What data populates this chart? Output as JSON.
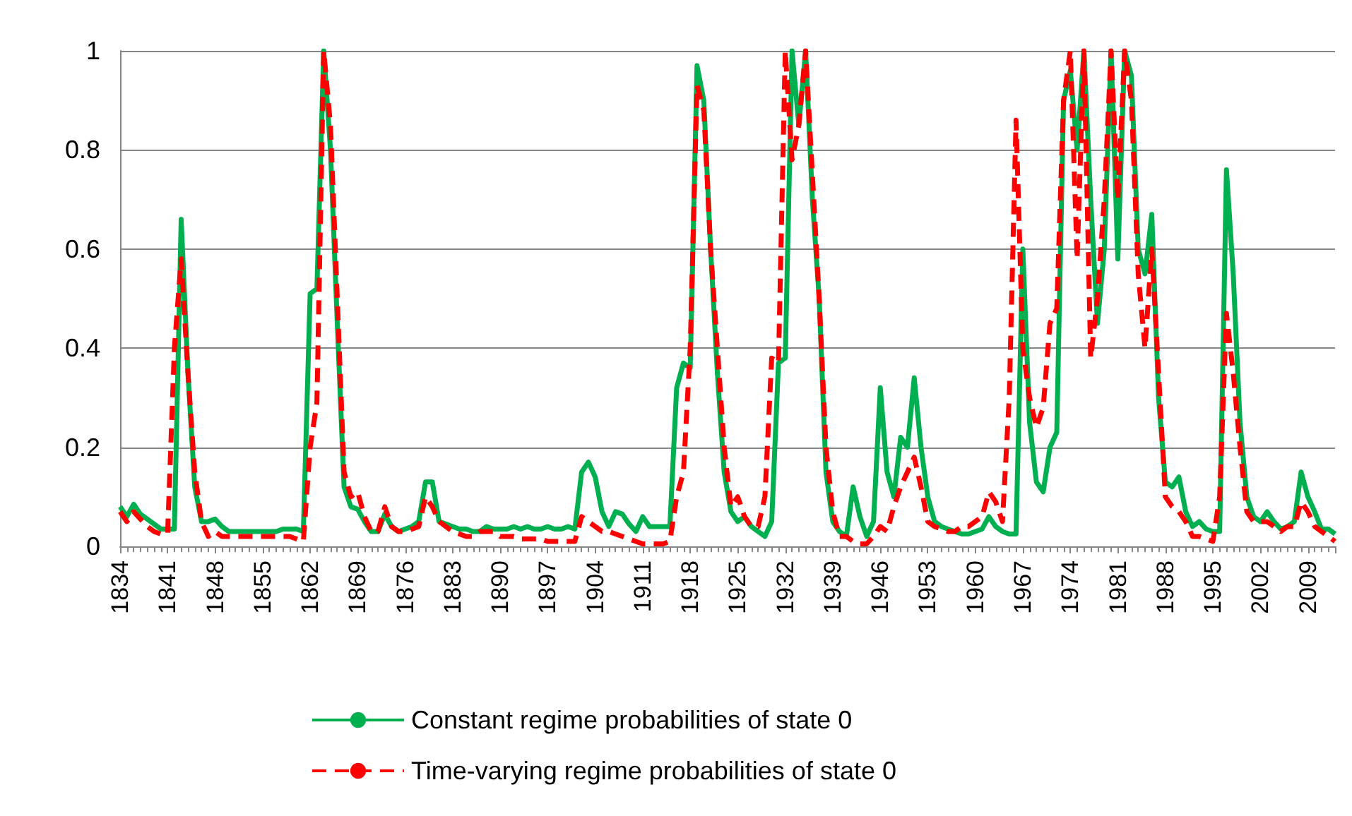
{
  "chart_data": {
    "type": "line",
    "x": [
      1834,
      1835,
      1836,
      1837,
      1838,
      1839,
      1840,
      1841,
      1842,
      1843,
      1844,
      1845,
      1846,
      1847,
      1848,
      1849,
      1850,
      1851,
      1852,
      1853,
      1854,
      1855,
      1856,
      1857,
      1858,
      1859,
      1860,
      1861,
      1862,
      1863,
      1864,
      1865,
      1866,
      1867,
      1868,
      1869,
      1870,
      1871,
      1872,
      1873,
      1874,
      1875,
      1876,
      1877,
      1878,
      1879,
      1880,
      1881,
      1882,
      1883,
      1884,
      1885,
      1886,
      1887,
      1888,
      1889,
      1890,
      1891,
      1892,
      1893,
      1894,
      1895,
      1896,
      1897,
      1898,
      1899,
      1900,
      1901,
      1902,
      1903,
      1904,
      1905,
      1906,
      1907,
      1908,
      1909,
      1910,
      1911,
      1912,
      1913,
      1914,
      1915,
      1916,
      1917,
      1918,
      1919,
      1920,
      1921,
      1922,
      1923,
      1924,
      1925,
      1926,
      1927,
      1928,
      1929,
      1930,
      1931,
      1932,
      1933,
      1934,
      1935,
      1936,
      1937,
      1938,
      1939,
      1940,
      1941,
      1942,
      1943,
      1944,
      1945,
      1946,
      1947,
      1948,
      1949,
      1950,
      1951,
      1952,
      1953,
      1954,
      1955,
      1956,
      1957,
      1958,
      1959,
      1960,
      1961,
      1962,
      1963,
      1964,
      1965,
      1966,
      1967,
      1968,
      1969,
      1970,
      1971,
      1972,
      1973,
      1974,
      1975,
      1976,
      1977,
      1978,
      1979,
      1980,
      1981,
      1982,
      1983,
      1984,
      1985,
      1986,
      1987,
      1988,
      1989,
      1990,
      1991,
      1992,
      1993,
      1994,
      1995,
      1996,
      1997,
      1998,
      1999,
      2000,
      2001,
      2002,
      2003,
      2004,
      2005,
      2006,
      2007,
      2008,
      2009,
      2010,
      2011,
      2012,
      2013
    ],
    "xlim": [
      1834,
      2013
    ],
    "xticks": [
      1834,
      1841,
      1848,
      1855,
      1862,
      1869,
      1876,
      1883,
      1890,
      1897,
      1904,
      1911,
      1918,
      1925,
      1932,
      1939,
      1946,
      1953,
      1960,
      1967,
      1974,
      1981,
      1988,
      1995,
      2002,
      2009
    ],
    "ylim": [
      0,
      1
    ],
    "yticks": [
      0,
      0.2,
      0.4,
      0.6,
      0.8,
      1
    ],
    "grid": "y",
    "legend": "bottom",
    "marker": "none",
    "series": [
      {
        "name": "Constant regime probabilities of state 0",
        "color": "#00b050",
        "line_style": "solid",
        "values": [
          0.08,
          0.06,
          0.085,
          0.065,
          0.055,
          0.045,
          0.035,
          0.035,
          0.035,
          0.66,
          0.35,
          0.12,
          0.05,
          0.05,
          0.055,
          0.04,
          0.03,
          0.03,
          0.03,
          0.03,
          0.03,
          0.03,
          0.03,
          0.03,
          0.035,
          0.035,
          0.035,
          0.03,
          0.51,
          0.52,
          1,
          0.8,
          0.45,
          0.12,
          0.08,
          0.075,
          0.05,
          0.03,
          0.03,
          0.065,
          0.04,
          0.03,
          0.035,
          0.04,
          0.05,
          0.13,
          0.13,
          0.05,
          0.045,
          0.04,
          0.035,
          0.035,
          0.03,
          0.03,
          0.04,
          0.035,
          0.035,
          0.035,
          0.04,
          0.035,
          0.04,
          0.035,
          0.035,
          0.04,
          0.035,
          0.035,
          0.04,
          0.035,
          0.15,
          0.17,
          0.14,
          0.07,
          0.04,
          0.07,
          0.065,
          0.045,
          0.03,
          0.06,
          0.04,
          0.04,
          0.04,
          0.04,
          0.32,
          0.37,
          0.36,
          0.97,
          0.9,
          0.6,
          0.35,
          0.15,
          0.07,
          0.05,
          0.06,
          0.04,
          0.03,
          0.02,
          0.05,
          0.37,
          0.38,
          1,
          0.85,
          1,
          0.7,
          0.5,
          0.15,
          0.05,
          0.03,
          0.02,
          0.12,
          0.06,
          0.02,
          0.05,
          0.32,
          0.15,
          0.1,
          0.22,
          0.2,
          0.34,
          0.2,
          0.1,
          0.05,
          0.04,
          0.035,
          0.03,
          0.025,
          0.025,
          0.03,
          0.035,
          0.06,
          0.04,
          0.03,
          0.025,
          0.025,
          0.6,
          0.25,
          0.13,
          0.11,
          0.2,
          0.23,
          0.9,
          0.96,
          0.8,
          1,
          0.7,
          0.45,
          0.6,
          1,
          0.58,
          1,
          0.95,
          0.6,
          0.55,
          0.67,
          0.3,
          0.13,
          0.12,
          0.14,
          0.07,
          0.04,
          0.05,
          0.035,
          0.03,
          0.03,
          0.76,
          0.55,
          0.25,
          0.1,
          0.06,
          0.05,
          0.07,
          0.05,
          0.035,
          0.04,
          0.05,
          0.15,
          0.1,
          0.07,
          0.035,
          0.035,
          0.025
        ]
      },
      {
        "name": "Time-varying regime probabilities of state 0",
        "color": "#ff0000",
        "line_style": "dashed",
        "values": [
          0.07,
          0.05,
          0.07,
          0.055,
          0.04,
          0.03,
          0.025,
          0.025,
          0.4,
          0.58,
          0.35,
          0.15,
          0.05,
          0.02,
          0.03,
          0.02,
          0.02,
          0.02,
          0.02,
          0.02,
          0.02,
          0.02,
          0.02,
          0.02,
          0.02,
          0.02,
          0.015,
          0.01,
          0.2,
          0.29,
          1,
          0.85,
          0.5,
          0.15,
          0.1,
          0.11,
          0.06,
          0.03,
          0.03,
          0.08,
          0.04,
          0.03,
          0.03,
          0.035,
          0.04,
          0.1,
          0.08,
          0.05,
          0.04,
          0.03,
          0.025,
          0.02,
          0.02,
          0.03,
          0.03,
          0.03,
          0.02,
          0.02,
          0.02,
          0.015,
          0.015,
          0.015,
          0.015,
          0.01,
          0.01,
          0.01,
          0.01,
          0.01,
          0.06,
          0.05,
          0.04,
          0.03,
          0.03,
          0.025,
          0.02,
          0.015,
          0.01,
          0.005,
          0.005,
          0.005,
          0.005,
          0.01,
          0.1,
          0.15,
          0.4,
          0.93,
          0.88,
          0.6,
          0.4,
          0.2,
          0.08,
          0.1,
          0.06,
          0.04,
          0.04,
          0.1,
          0.38,
          0.37,
          1,
          0.78,
          0.85,
          1,
          0.75,
          0.5,
          0.2,
          0.07,
          0.02,
          0.02,
          0.01,
          0.005,
          0.005,
          0.02,
          0.04,
          0.03,
          0.08,
          0.12,
          0.15,
          0.18,
          0.12,
          0.05,
          0.04,
          0.035,
          0.03,
          0.03,
          0.04,
          0.04,
          0.05,
          0.06,
          0.11,
          0.09,
          0.05,
          0.3,
          0.86,
          0.4,
          0.3,
          0.24,
          0.28,
          0.45,
          0.48,
          0.9,
          1,
          0.58,
          1,
          0.38,
          0.5,
          0.7,
          1,
          0.7,
          1,
          0.9,
          0.55,
          0.4,
          0.6,
          0.35,
          0.1,
          0.08,
          0.07,
          0.05,
          0.02,
          0.02,
          0.015,
          0.01,
          0.1,
          0.47,
          0.35,
          0.2,
          0.07,
          0.05,
          0.05,
          0.05,
          0.04,
          0.03,
          0.04,
          0.04,
          0.09,
          0.07,
          0.04,
          0.03,
          0.02,
          0.01
        ]
      }
    ]
  }
}
